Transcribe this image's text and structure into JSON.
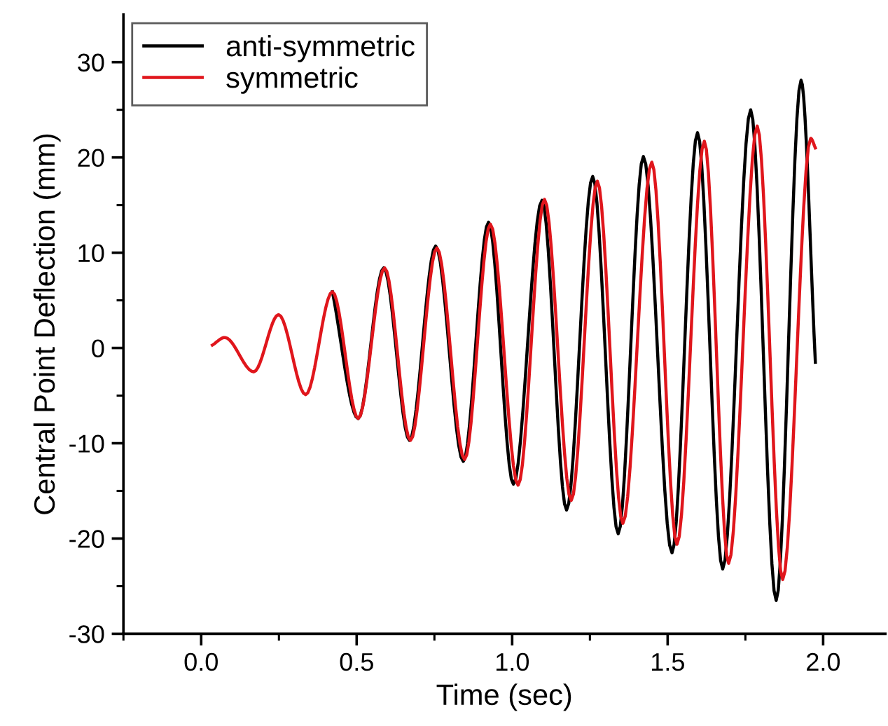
{
  "chart_data": {
    "type": "line",
    "xlabel": "Time (sec)",
    "ylabel": "Central Point Deflection (mm)",
    "xlim": [
      -0.25,
      2.2
    ],
    "ylim": [
      -30,
      35
    ],
    "xticks": [
      {
        "value": -0.25,
        "label": null
      },
      {
        "value": 0,
        "label": "0.0"
      },
      {
        "value": 0.25,
        "label": null
      },
      0.5,
      {
        "value": 0.75,
        "label": null
      },
      {
        "value": 1,
        "label": "1.0"
      },
      {
        "value": 1.25,
        "label": null
      },
      1.5,
      {
        "value": 1.75,
        "label": null
      },
      {
        "value": 2,
        "label": "2.0"
      }
    ],
    "yticks": [
      -30,
      {
        "value": -25,
        "label": null
      },
      -20,
      {
        "value": -15,
        "label": null
      },
      -10,
      {
        "value": -5,
        "label": null
      },
      0,
      {
        "value": 5,
        "label": null
      },
      10,
      {
        "value": 15,
        "label": null
      },
      20,
      {
        "value": 25,
        "label": null
      },
      30
    ],
    "legend": "top left",
    "grid": false,
    "marker": "none",
    "line_style": "solid",
    "series": [
      {
        "name": "anti-symmetric",
        "color": "#000000",
        "x": [
          0.422,
          0.505,
          0.587,
          0.67,
          0.754,
          0.843,
          0.924,
          1.004,
          1.096,
          1.175,
          1.259,
          1.341,
          1.422,
          1.514,
          1.596,
          1.677,
          1.767,
          1.849,
          1.929,
          1.975
        ],
        "values": [
          5.9,
          -7.4,
          8.4,
          -9.7,
          10.7,
          -11.9,
          13.2,
          -14.3,
          15.5,
          -17.0,
          18.0,
          -19.5,
          20.1,
          -21.5,
          22.6,
          -23.2,
          25.0,
          -26.5,
          28.1,
          -1.5
        ]
      },
      {
        "name": "symmetric",
        "color": "#e0161c",
        "x": [
          0.036,
          0.076,
          0.169,
          0.249,
          0.336,
          0.422,
          0.505,
          0.59,
          0.673,
          0.758,
          0.847,
          0.93,
          1.019,
          1.104,
          1.19,
          1.274,
          1.356,
          1.449,
          1.53,
          1.618,
          1.696,
          1.788,
          1.87,
          1.96,
          1.975
        ],
        "values": [
          0.3,
          1.1,
          -2.5,
          3.5,
          -4.9,
          5.9,
          -7.4,
          8.4,
          -9.7,
          10.5,
          -11.7,
          13.0,
          -14.4,
          15.6,
          -16.0,
          17.5,
          -18.4,
          19.5,
          -20.6,
          21.7,
          -22.6,
          23.3,
          -24.3,
          22.0,
          21.0
        ]
      }
    ]
  }
}
